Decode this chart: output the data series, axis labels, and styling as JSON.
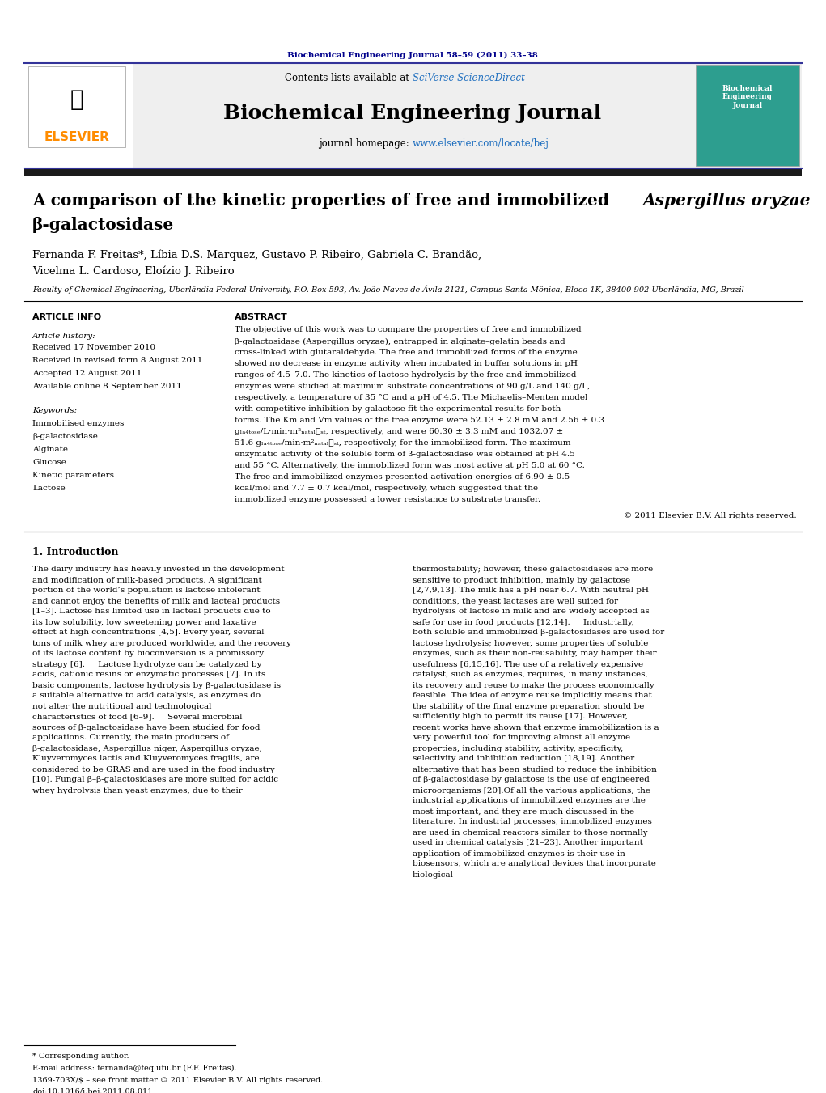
{
  "journal_ref": "Biochemical Engineering Journal 58–59 (2011) 33–38",
  "journal_name": "Biochemical Engineering Journal",
  "contents_line": "Contents lists available at SciVerse ScienceDirect",
  "homepage_line": "journal homepage: www.elsevier.com/locate/bej",
  "elsevier_text": "ELSEVIER",
  "title_normal": "A comparison of the kinetic properties of free and immobilized ",
  "title_italic": "Aspergillus oryzae",
  "title_line2": "β-galactosidase",
  "authors": "Fernanda F. Freitas*, Líbia D.S. Marquez, Gustavo P. Ribeiro, Gabriela C. Brandão,",
  "authors2": "Vicelma L. Cardoso, Eloízio J. Ribeiro",
  "affiliation": "Faculty of Chemical Engineering, Uberlândia Federal University, P.O. Box 593, Av. João Naves de Ávila 2121, Campus Santa Mônica, Bloco 1K, 38400-902 Uberlândia, MG, Brazil",
  "article_info_title": "ARTICLE INFO",
  "article_history_title": "Article history:",
  "received1": "Received 17 November 2010",
  "received2": "Received in revised form 8 August 2011",
  "accepted": "Accepted 12 August 2011",
  "online": "Available online 8 September 2011",
  "keywords_title": "Keywords:",
  "keywords": [
    "Immobilised enzymes",
    "β-galactosidase",
    "Alginate",
    "Glucose",
    "Kinetic parameters",
    "Lactose"
  ],
  "abstract_title": "ABSTRACT",
  "abstract_text": "The objective of this work was to compare the properties of free and immobilized β-galactosidase (Aspergillus oryzae), entrapped in alginate–gelatin beads and cross-linked with glutaraldehyde. The free and immobilized forms of the enzyme showed no decrease in enzyme activity when incubated in buffer solutions in pH ranges of 4.5–7.0. The kinetics of lactose hydrolysis by the free and immobilized enzymes were studied at maximum substrate concentrations of 90 g/L and 140 g/L, respectively, a temperature of 35 °C and a pH of 4.5. The Michaelis–Menten model with competitive inhibition by galactose fit the experimental results for both forms. The Km and Vm values of the free enzyme were 52.13 ± 2.8 mM and 2.56 ± 0.3 gₗₐ₄ₜₒₛₑ/L·min·m²ₙₐₜₐₗ₞ₛₜ, respectively, and were 60.30 ± 3.3 mM and 1032.07 ± 51.6 gₗₐ₄ₜₒₛₑ/min·m²ₙₐₜₐₗ₞ₛₜ, respectively, for the immobilized form. The maximum enzymatic activity of the soluble form of β-galactosidase was obtained at pH 4.5 and 55 °C. Alternatively, the immobilized form was most active at pH 5.0 at 60 °C. The free and immobilized enzymes presented activation energies of 6.90 ± 0.5 kcal/mol and 7.7 ± 0.7 kcal/mol, respectively, which suggested that the immobilized enzyme possessed a lower resistance to substrate transfer.",
  "copyright": "© 2011 Elsevier B.V. All rights reserved.",
  "intro_title": "1. Introduction",
  "intro_col1": "The dairy industry has heavily invested in the development and modification of milk-based products. A significant portion of the world’s population is lactose intolerant and cannot enjoy the benefits of milk and lacteal products [1–3]. Lactose has limited use in lacteal products due to its low solubility, low sweetening power and laxative effect at high concentrations [4,5]. Every year, several tons of milk whey are produced worldwide, and the recovery of its lactose content by bioconversion is a promissory strategy [6].\n    Lactose hydrolyze can be catalyzed by acids, cationic resins or enzymatic processes [7]. In its basic components, lactose hydrolysis by β-galactosidase is a suitable alternative to acid catalysis, as enzymes do not alter the nutritional and technological characteristics of food [6–9].\n    Several microbial sources of β-galactosidase have been studied for food applications. Currently, the main producers of β-galactosidase, Aspergillus niger, Aspergillus oryzae, Kluyveromyces lactis and Kluyveromyces fragilis, are considered to be GRAS and are used in the food industry [10]. Fungal β–β-galactosidases are more suited for acidic whey hydrolysis than yeast enzymes, due to their",
  "intro_col2": "thermostability; however, these galactosidases are more sensitive to product inhibition, mainly by galactose [2,7,9,13]. The milk has a pH near 6.7. With neutral pH conditions, the yeast lactases are well suited for hydrolysis of lactose in milk and are widely accepted as safe for use in food products [12,14].\n    Industrially, both soluble and immobilized β-galactosidases are used for lactose hydrolysis; however, some properties of soluble enzymes, such as their non-reusability, may hamper their usefulness [6,15,16]. The use of a relatively expensive catalyst, such as enzymes, requires, in many instances, its recovery and reuse to make the process economically feasible. The idea of enzyme reuse implicitly means that the stability of the final enzyme preparation should be sufficiently high to permit its reuse [17]. However, recent works have shown that enzyme immobilization is a very powerful tool for improving almost all enzyme properties, including stability, activity, specificity, selectivity and inhibition reduction [18,19]. Another alternative that has been studied to reduce the inhibition of β-galactosidase by galactose is the use of engineered microorganisms [20].Of all the various applications, the industrial applications of immobilized enzymes are the most important, and they are much discussed in the literature. In industrial processes, immobilized enzymes are used in chemical reactors similar to those normally used in chemical catalysis [21–23]. Another important application of immobilized enzymes is their use in biosensors, which are analytical devices that incorporate biological",
  "footnote1": "* Corresponding author.",
  "footnote2": "E-mail address: fernanda@feq.ufu.br (F.F. Freitas).",
  "footnote3": "1369-703X/$ – see front matter © 2011 Elsevier B.V. All rights reserved.",
  "footnote4": "doi:10.1016/j.bej.2011.08.011",
  "colors": {
    "dark_blue": "#00008B",
    "navy": "#000080",
    "teal_link": "#008080",
    "orange": "#FF8C00",
    "black": "#000000",
    "dark_gray": "#333333",
    "light_gray": "#E8E8E8",
    "medium_gray": "#CCCCCC",
    "header_bar_color": "#1a1a2e",
    "section_bg": "#EFEFEF"
  }
}
